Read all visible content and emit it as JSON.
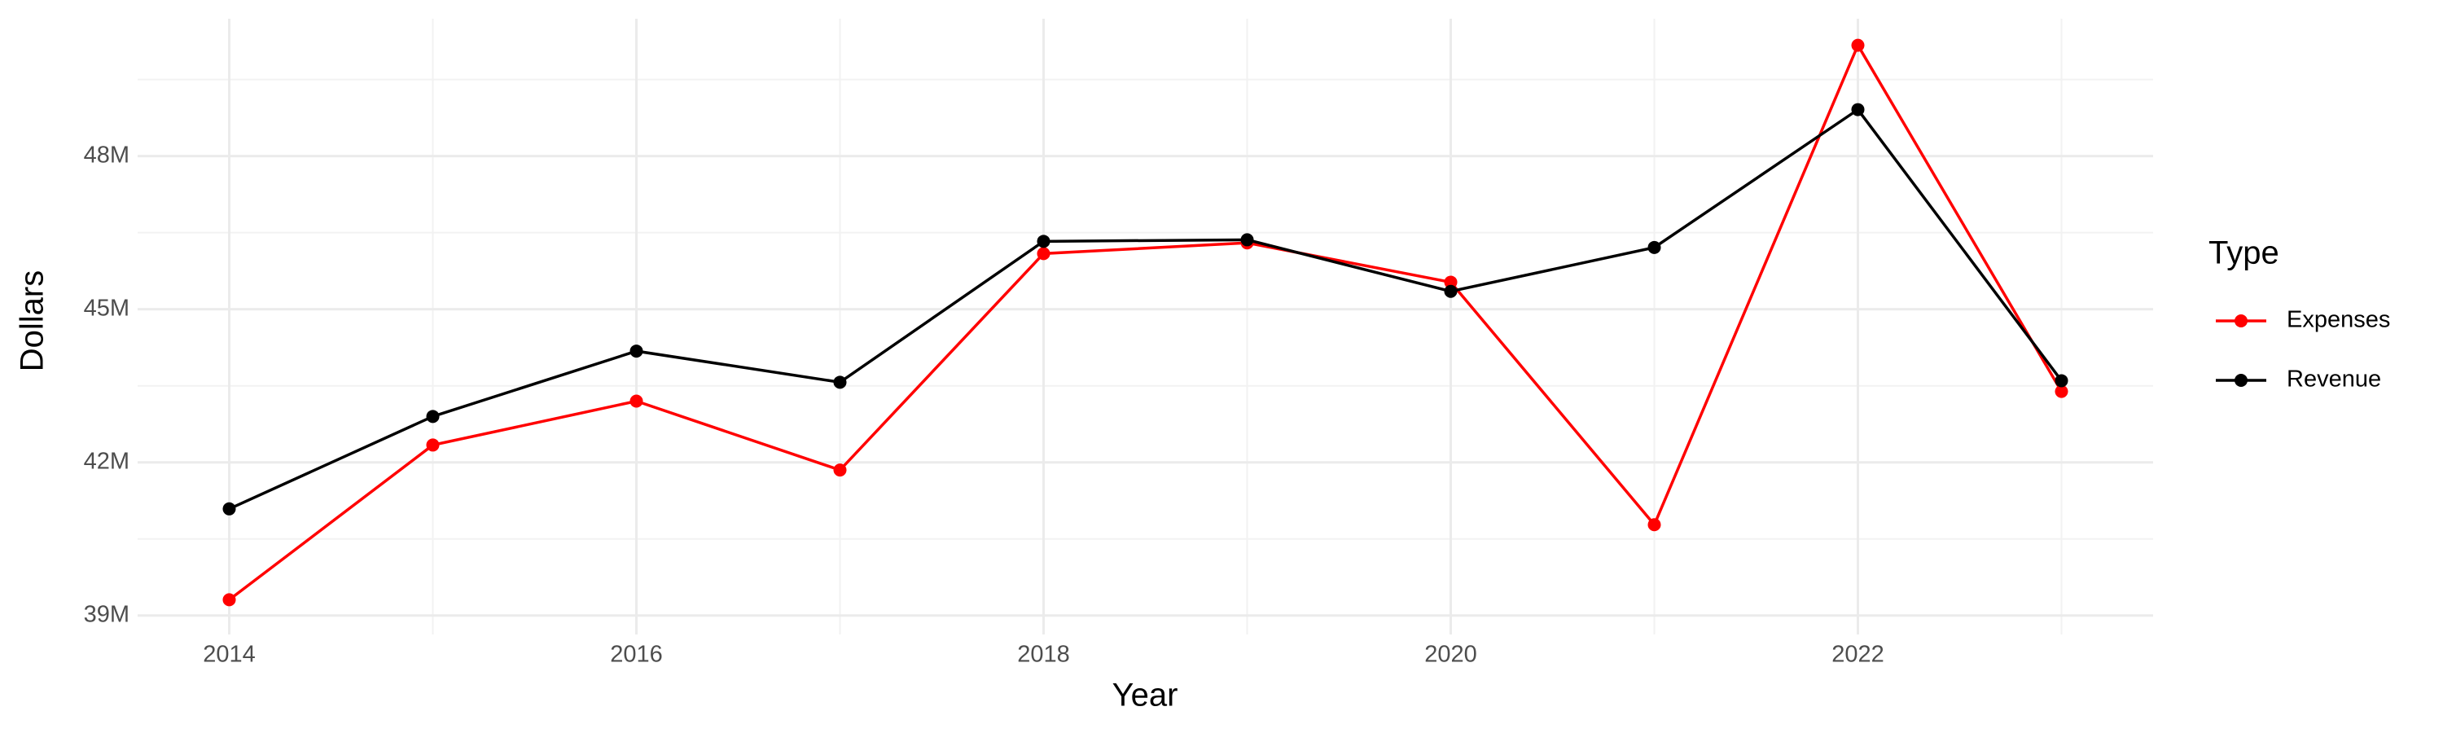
{
  "chart_data": {
    "type": "line",
    "x_label": "Year",
    "y_label": "Dollars",
    "legend_title": "Type",
    "legend_position": "right",
    "grid": true,
    "x": [
      2014,
      2015,
      2016,
      2017,
      2018,
      2019,
      2020,
      2021,
      2022,
      2023
    ],
    "series": [
      {
        "name": "Expenses",
        "color": "#ff0000",
        "values": [
          39310000,
          42340000,
          43200000,
          41850000,
          46090000,
          46300000,
          45530000,
          40780000,
          50170000,
          43390000
        ]
      },
      {
        "name": "Revenue",
        "color": "#000000",
        "values": [
          41090000,
          42900000,
          44180000,
          43570000,
          46330000,
          46360000,
          45350000,
          46210000,
          48910000,
          43600000
        ]
      }
    ],
    "xlim": [
      2013.55,
      2023.45
    ],
    "xticks": [
      2014,
      2016,
      2018,
      2020,
      2022
    ],
    "ylim": [
      38630000,
      50690000
    ],
    "yticks": [
      {
        "value": 39000000,
        "label": "39M"
      },
      {
        "value": 42000000,
        "label": "42M"
      },
      {
        "value": 45000000,
        "label": "45M"
      },
      {
        "value": 48000000,
        "label": "48M"
      }
    ]
  }
}
